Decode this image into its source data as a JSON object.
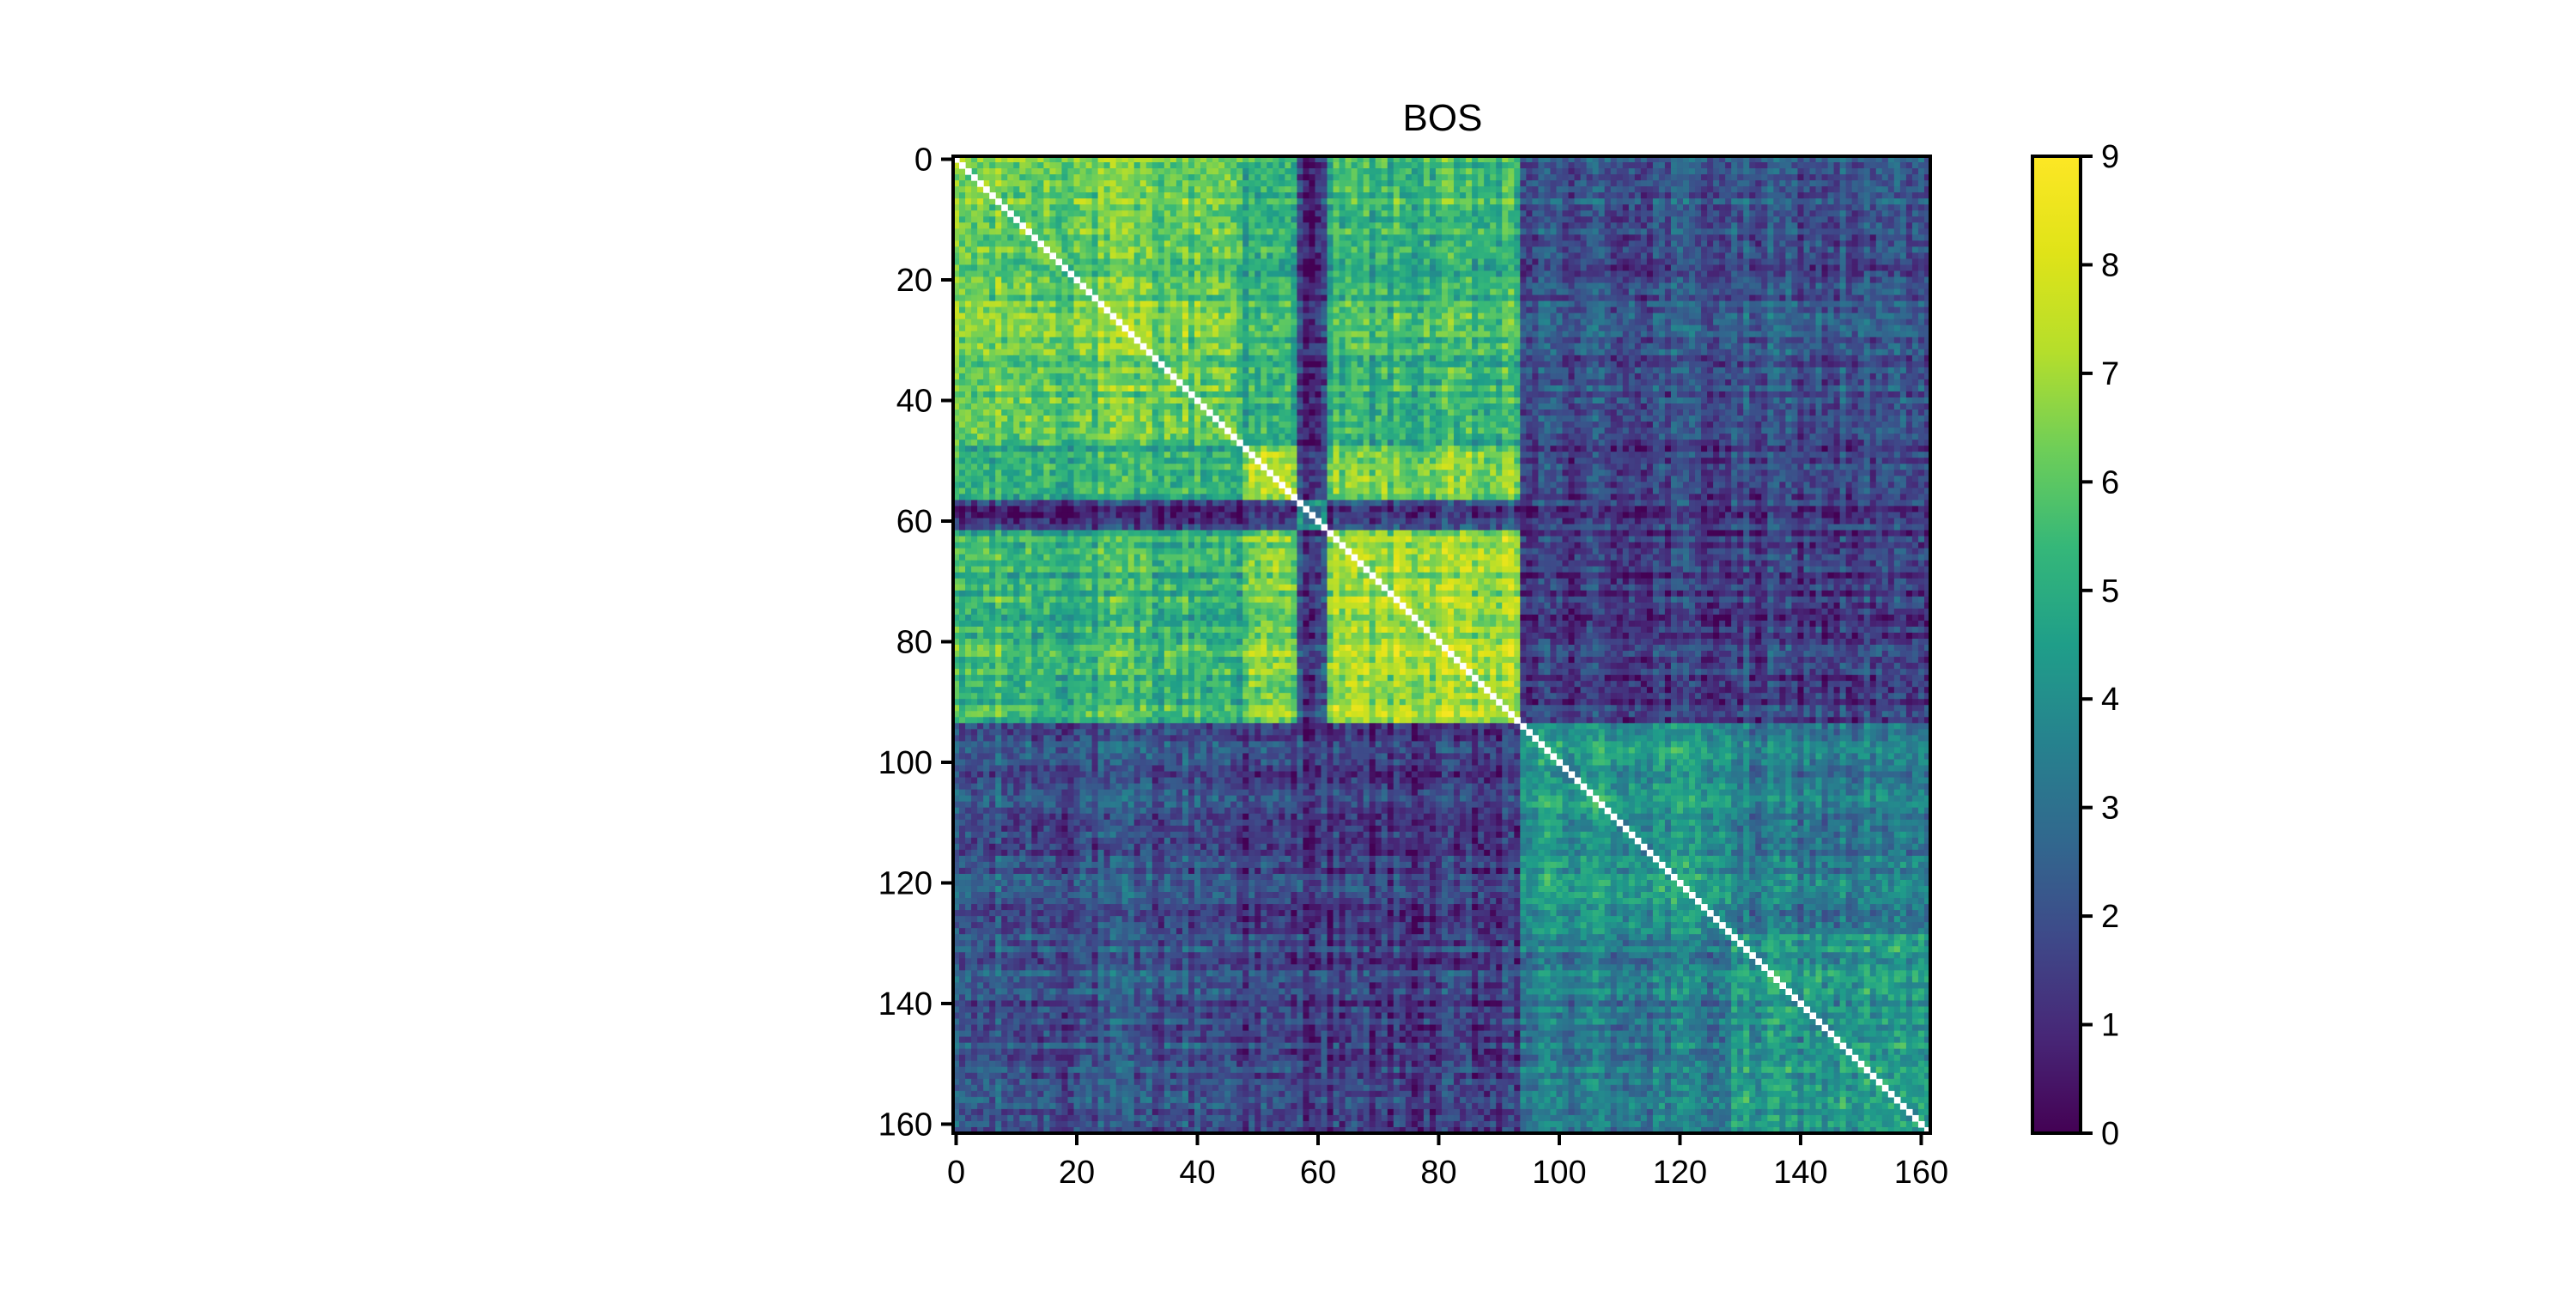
{
  "chart_data": {
    "type": "heatmap",
    "title": "BOS",
    "xlabel": "",
    "ylabel": "",
    "n": 162,
    "colormap": "viridis",
    "value_range": [
      0,
      9
    ],
    "x_ticks": [
      0,
      20,
      40,
      60,
      80,
      100,
      120,
      140,
      160
    ],
    "y_ticks": [
      0,
      20,
      40,
      60,
      80,
      100,
      120,
      140,
      160
    ],
    "colorbar_ticks": [
      0,
      1,
      2,
      3,
      4,
      5,
      6,
      7,
      8,
      9
    ],
    "diagonal": "white (masked)",
    "cluster_blocks": [
      {
        "rows": [
          0,
          47
        ],
        "cols": [
          0,
          47
        ],
        "value": 6.2
      },
      {
        "rows": [
          0,
          47
        ],
        "cols": [
          48,
          56
        ],
        "value": 5.0
      },
      {
        "rows": [
          0,
          47
        ],
        "cols": [
          57,
          61
        ],
        "value": 1.2
      },
      {
        "rows": [
          0,
          47
        ],
        "cols": [
          62,
          93
        ],
        "value": 5.2
      },
      {
        "rows": [
          0,
          47
        ],
        "cols": [
          94,
          161
        ],
        "value": 2.0
      },
      {
        "rows": [
          48,
          56
        ],
        "cols": [
          48,
          56
        ],
        "value": 6.8
      },
      {
        "rows": [
          48,
          56
        ],
        "cols": [
          57,
          61
        ],
        "value": 1.5
      },
      {
        "rows": [
          48,
          56
        ],
        "cols": [
          62,
          93
        ],
        "value": 6.2
      },
      {
        "rows": [
          48,
          56
        ],
        "cols": [
          94,
          161
        ],
        "value": 1.5
      },
      {
        "rows": [
          57,
          61
        ],
        "cols": [
          57,
          61
        ],
        "value": 4.0
      },
      {
        "rows": [
          57,
          61
        ],
        "cols": [
          62,
          93
        ],
        "value": 1.6
      },
      {
        "rows": [
          57,
          61
        ],
        "cols": [
          94,
          161
        ],
        "value": 1.5
      },
      {
        "rows": [
          62,
          93
        ],
        "cols": [
          62,
          93
        ],
        "value": 6.8
      },
      {
        "rows": [
          62,
          93
        ],
        "cols": [
          94,
          161
        ],
        "value": 1.3
      },
      {
        "rows": [
          94,
          128
        ],
        "cols": [
          94,
          128
        ],
        "value": 4.3
      },
      {
        "rows": [
          94,
          128
        ],
        "cols": [
          129,
          161
        ],
        "value": 3.3
      },
      {
        "rows": [
          129,
          161
        ],
        "cols": [
          129,
          161
        ],
        "value": 4.2
      }
    ]
  }
}
